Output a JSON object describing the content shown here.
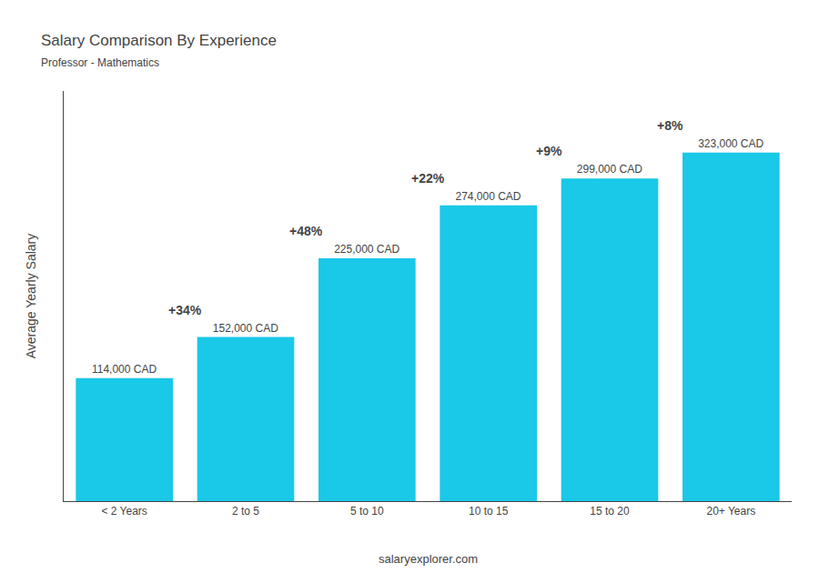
{
  "chart_data": {
    "type": "bar",
    "title": "Salary Comparison By Experience",
    "subtitle": "Professor - Mathematics",
    "ylabel": "Average Yearly Salary",
    "categories": [
      "< 2 Years",
      "2 to 5",
      "5 to 10",
      "10 to 15",
      "15 to 20",
      "20+ Years"
    ],
    "values": [
      114000,
      152000,
      225000,
      274000,
      299000,
      323000
    ],
    "value_labels": [
      "114,000 CAD",
      "152,000 CAD",
      "225,000 CAD",
      "274,000 CAD",
      "299,000 CAD",
      "323,000 CAD"
    ],
    "data_labels": true,
    "color": "#1ac8e8",
    "annotations": [
      null,
      "+34%",
      "+48%",
      "+22%",
      "+9%",
      "+8%"
    ],
    "footer": "salaryexplorer.com",
    "ylim": [
      0,
      380000
    ],
    "grid": false,
    "tick_labels": "x"
  }
}
